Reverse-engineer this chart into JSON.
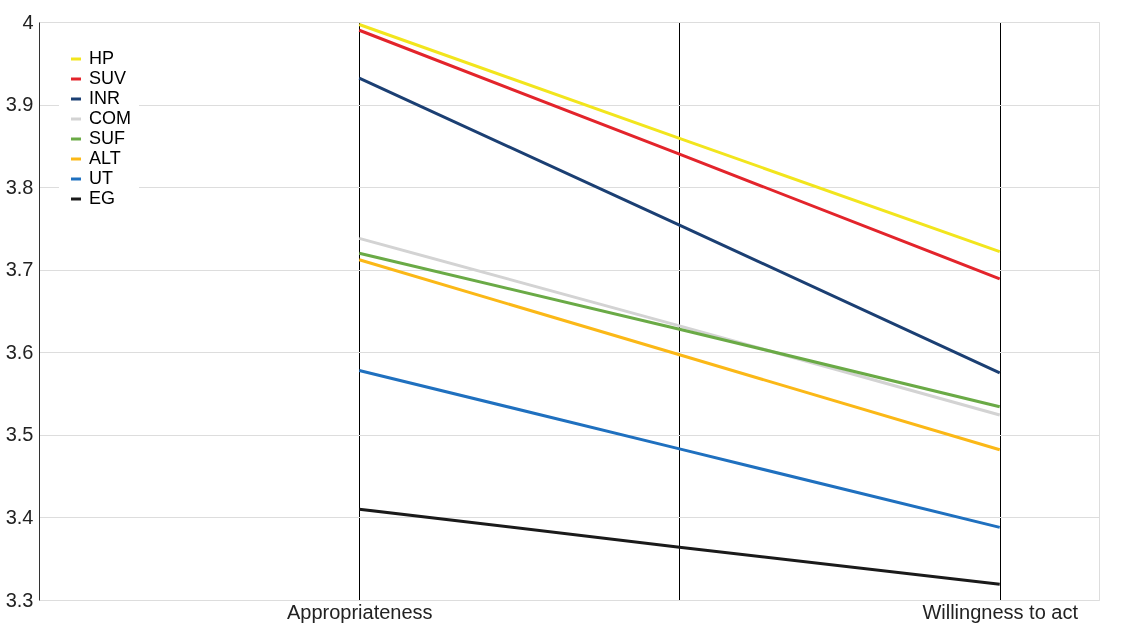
{
  "chart_data": {
    "type": "line",
    "categories": [
      "Appropriateness",
      null,
      "Willingness to act"
    ],
    "ylim": [
      3.3,
      4
    ],
    "yticks": [
      3.3,
      3.4,
      3.5,
      3.6,
      3.7,
      3.8,
      3.9,
      4
    ],
    "grid": true,
    "legend": "top left",
    "marker": "none",
    "line_style": "solid",
    "series": [
      {
        "name": "HP",
        "color": "#f2e51d",
        "values": [
          3.997,
          3.859,
          3.722
        ]
      },
      {
        "name": "SUV",
        "color": "#e3242b",
        "values": [
          3.99,
          3.84,
          3.689
        ]
      },
      {
        "name": "INR",
        "color": "#1b3f73",
        "values": [
          3.932,
          3.754,
          3.575
        ]
      },
      {
        "name": "COM",
        "color": "#d3d3d3",
        "values": [
          3.738,
          3.632,
          3.524
        ]
      },
      {
        "name": "SUF",
        "color": "#6aaa46",
        "values": [
          3.72,
          3.628,
          3.534
        ]
      },
      {
        "name": "ALT",
        "color": "#fbb817",
        "values": [
          3.712,
          3.597,
          3.482
        ]
      },
      {
        "name": "UT",
        "color": "#1f70bf",
        "values": [
          3.578,
          3.483,
          3.388
        ]
      },
      {
        "name": "EG",
        "color": "#1a1a1a",
        "values": [
          3.41,
          3.364,
          3.319
        ]
      }
    ]
  }
}
